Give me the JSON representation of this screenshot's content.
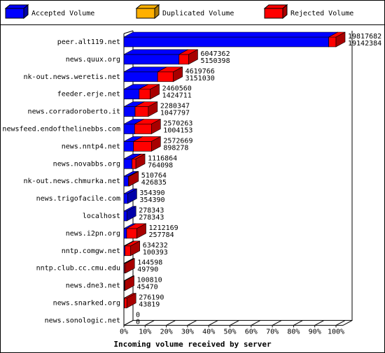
{
  "chart_data": {
    "type": "bar3d-stacked-horizontal",
    "xlabel": "Incoming volume received by server",
    "categories": [
      "peer.alt119.net",
      "news.quux.org",
      "nk-out.news.weretis.net",
      "feeder.erje.net",
      "news.corradoroberto.it",
      "newsfeed.endofthelinebbs.com",
      "news.nntp4.net",
      "news.novabbs.org",
      "nk-out.news.chmurka.net",
      "news.trigofacile.com",
      "localhost",
      "news.i2pn.org",
      "nntp.comgw.net",
      "nntp.club.cc.cmu.edu",
      "news.dne3.net",
      "news.snarked.org",
      "news.sonologic.net"
    ],
    "series": [
      {
        "name": "Accepted Volume",
        "color": "#0000ff",
        "side": "#0000a8",
        "values": [
          19142384,
          5150398,
          3151030,
          1424711,
          1047797,
          1004153,
          898278,
          764098,
          426835,
          354390,
          278343,
          257784,
          100393,
          49790,
          45470,
          43819,
          0
        ]
      },
      {
        "name": "Duplicated Volume",
        "color": "#ffb000",
        "side": "#b07a00",
        "values": [
          0,
          0,
          0,
          0,
          0,
          0,
          0,
          0,
          0,
          0,
          0,
          0,
          0,
          0,
          0,
          0,
          0
        ]
      },
      {
        "name": "Rejected Volume",
        "color": "#ff0000",
        "side": "#a80000",
        "values": [
          675298,
          896964,
          1468736,
          1035849,
          1232550,
          1566110,
          1674391,
          352766,
          83929,
          0,
          0,
          954385,
          533839,
          94808,
          55340,
          232371,
          0
        ]
      }
    ],
    "totals": [
      19817682,
      6047362,
      4619766,
      2460560,
      2280347,
      2570263,
      2572669,
      1116864,
      510764,
      354390,
      278343,
      1212169,
      634232,
      144598,
      100810,
      276190,
      0
    ],
    "xlim": [
      0,
      19817682
    ],
    "xticks": [
      {
        "value": 0,
        "label": "0%"
      },
      {
        "value": 1981768.2,
        "label": "10%"
      },
      {
        "value": 3963536.4,
        "label": "20%"
      },
      {
        "value": 5945304.6,
        "label": "30%"
      },
      {
        "value": 7927072.8,
        "label": "40%"
      },
      {
        "value": 9908841,
        "label": "50%"
      },
      {
        "value": 11890609.2,
        "label": "60%"
      },
      {
        "value": 13872377.4,
        "label": "70%"
      },
      {
        "value": 15854145.6,
        "label": "80%"
      },
      {
        "value": 17835913.8,
        "label": "90%"
      },
      {
        "value": 19817682,
        "label": "100%"
      }
    ]
  }
}
